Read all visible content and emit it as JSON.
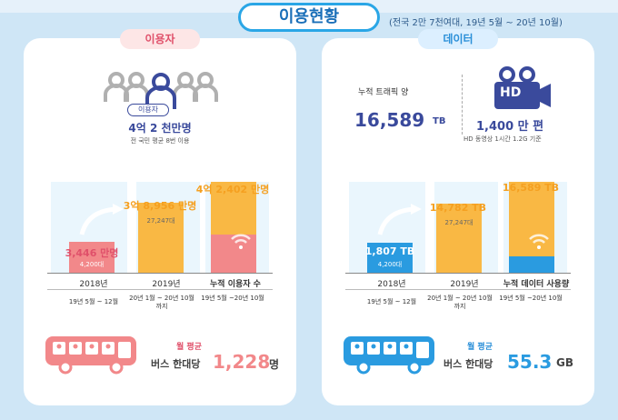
{
  "header": {
    "title": "이용현황",
    "subtitle": "(전국 2만 7천여대, 19년 5월 ~ 20년 10월)"
  },
  "left": {
    "tag": "이용자",
    "user_badge": "이용자",
    "total_users": "4억 2 천만명",
    "total_note": "전 국민 평균 8번 이용",
    "bars": [
      {
        "value": "3,446 만명",
        "sub": "4,200대",
        "label": "2018년",
        "period": "19년 5월 ~ 12월",
        "level": 0.34
      },
      {
        "value": "3억 8,956 만명",
        "sub": "27,247대",
        "label": "2019년",
        "period": "20년 1월 ~ 20년 10월 까지",
        "level": 0.77
      },
      {
        "value": "4억 2,402 만명",
        "sub": "",
        "label": "누적 이용자 수",
        "period": "19년 5월 ~20년 10월",
        "level": 1.0
      }
    ],
    "bus_month": "월 평균",
    "bus_label": "버스 한대당",
    "bus_value": "1,228",
    "bus_unit": "명"
  },
  "right": {
    "tag": "데이터",
    "traffic_label": "누적 트래픽 양",
    "traffic_value": "16,589",
    "traffic_unit": "TB",
    "hd_label": "HD",
    "hd_value": "1,400 만 편",
    "hd_note": "HD 동영상 1시간 1.2G 기준",
    "bars": [
      {
        "value": "1,807 TB",
        "sub": "4,200대",
        "label": "2018년",
        "period": "19년 5월 ~ 12월",
        "level": 0.33
      },
      {
        "value": "14,782 TB",
        "sub": "27,247대",
        "label": "2019년",
        "period": "20년 1월 ~ 20년 10월 까지",
        "level": 0.76
      },
      {
        "value": "16,589 TB",
        "sub": "",
        "label": "누적 데이터 사용량",
        "period": "19년 5월 ~20년 10월",
        "level": 1.0
      }
    ],
    "bus_month": "월 평균",
    "bus_label": "버스 한대당",
    "bus_value": "55.3",
    "bus_unit": "GB"
  },
  "colors": {
    "pink": "#f08a8a",
    "orange": "#f9b844",
    "blue": "#2a9be0",
    "navy": "#3a4a9c"
  }
}
